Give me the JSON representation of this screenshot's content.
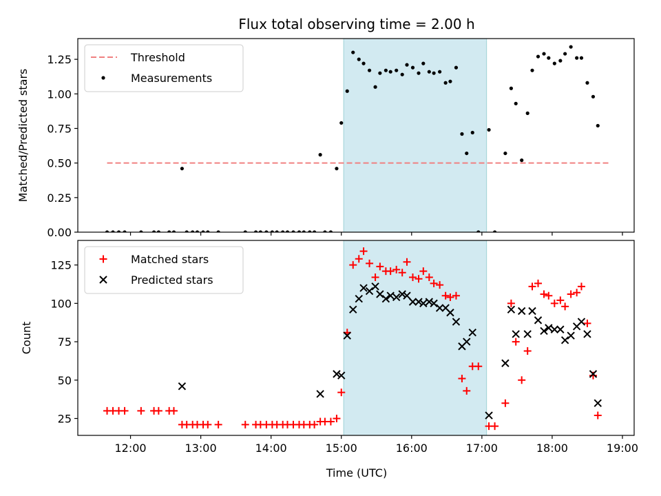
{
  "title": "Flux total observing time = 2.00 h",
  "xlabel": "Time (UTC)",
  "xticks": [
    "12:00",
    "13:00",
    "14:00",
    "15:00",
    "16:00",
    "17:00",
    "18:00",
    "19:00"
  ],
  "colors": {
    "threshold": "#f08080",
    "matched": "#ff0000",
    "predicted": "#000000",
    "measurement": "#000000",
    "shade": "#add8e6"
  },
  "chart_data": [
    {
      "type": "scatter",
      "ylabel": "Matched/Predicted stars",
      "ylim": [
        0,
        1.4
      ],
      "xlim": [
        "11:15",
        "19:10"
      ],
      "yticks": [
        "0.00",
        "0.25",
        "0.50",
        "0.75",
        "1.00",
        "1.25"
      ],
      "legend_position": "top-left",
      "shaded_interval": [
        "15:02",
        "17:04"
      ],
      "threshold": {
        "name": "Threshold",
        "value": 0.5,
        "x_range": [
          "11:40",
          "18:48"
        ]
      },
      "series": [
        {
          "name": "Measurements",
          "points": [
            [
              "11:40",
              0.0
            ],
            [
              "11:45",
              0.0
            ],
            [
              "11:50",
              0.0
            ],
            [
              "11:55",
              0.0
            ],
            [
              "12:09",
              0.0
            ],
            [
              "12:20",
              0.0
            ],
            [
              "12:24",
              0.0
            ],
            [
              "12:33",
              0.0
            ],
            [
              "12:37",
              0.0
            ],
            [
              "12:44",
              0.46
            ],
            [
              "12:48",
              0.0
            ],
            [
              "12:53",
              0.0
            ],
            [
              "12:57",
              0.0
            ],
            [
              "13:02",
              0.0
            ],
            [
              "13:06",
              0.0
            ],
            [
              "13:15",
              0.0
            ],
            [
              "13:38",
              0.0
            ],
            [
              "13:47",
              0.0
            ],
            [
              "13:51",
              0.0
            ],
            [
              "13:56",
              0.0
            ],
            [
              "14:01",
              0.0
            ],
            [
              "14:05",
              0.0
            ],
            [
              "14:10",
              0.0
            ],
            [
              "14:14",
              0.0
            ],
            [
              "14:19",
              0.0
            ],
            [
              "14:24",
              0.0
            ],
            [
              "14:28",
              0.0
            ],
            [
              "14:33",
              0.0
            ],
            [
              "14:37",
              0.0
            ],
            [
              "14:42",
              0.56
            ],
            [
              "14:46",
              0.0
            ],
            [
              "14:51",
              0.0
            ],
            [
              "14:56",
              0.46
            ],
            [
              "15:00",
              0.79
            ],
            [
              "15:05",
              1.02
            ],
            [
              "15:10",
              1.3
            ],
            [
              "15:15",
              1.25
            ],
            [
              "15:19",
              1.22
            ],
            [
              "15:24",
              1.17
            ],
            [
              "15:29",
              1.05
            ],
            [
              "15:33",
              1.15
            ],
            [
              "15:38",
              1.17
            ],
            [
              "15:42",
              1.16
            ],
            [
              "15:47",
              1.17
            ],
            [
              "15:52",
              1.14
            ],
            [
              "15:56",
              1.21
            ],
            [
              "16:01",
              1.19
            ],
            [
              "16:06",
              1.15
            ],
            [
              "16:10",
              1.22
            ],
            [
              "16:15",
              1.16
            ],
            [
              "16:19",
              1.15
            ],
            [
              "16:24",
              1.16
            ],
            [
              "16:29",
              1.08
            ],
            [
              "16:33",
              1.09
            ],
            [
              "16:38",
              1.19
            ],
            [
              "16:43",
              0.71
            ],
            [
              "16:47",
              0.57
            ],
            [
              "16:52",
              0.72
            ],
            [
              "16:57",
              0.0
            ],
            [
              "17:06",
              0.74
            ],
            [
              "17:11",
              0.0
            ],
            [
              "17:20",
              0.57
            ],
            [
              "17:25",
              1.04
            ],
            [
              "17:29",
              0.93
            ],
            [
              "17:34",
              0.52
            ],
            [
              "17:39",
              0.86
            ],
            [
              "17:43",
              1.17
            ],
            [
              "17:48",
              1.27
            ],
            [
              "17:53",
              1.29
            ],
            [
              "17:57",
              1.26
            ],
            [
              "18:02",
              1.22
            ],
            [
              "18:07",
              1.24
            ],
            [
              "18:11",
              1.29
            ],
            [
              "18:16",
              1.34
            ],
            [
              "18:21",
              1.26
            ],
            [
              "18:25",
              1.26
            ],
            [
              "18:30",
              1.08
            ],
            [
              "18:35",
              0.98
            ],
            [
              "18:39",
              0.77
            ]
          ]
        }
      ]
    },
    {
      "type": "scatter",
      "ylabel": "Count",
      "ylim": [
        14,
        141
      ],
      "xlim": [
        "11:15",
        "19:10"
      ],
      "yticks": [
        "25",
        "50",
        "75",
        "100",
        "125"
      ],
      "legend_position": "top-left",
      "shaded_interval": [
        "15:02",
        "17:04"
      ],
      "series": [
        {
          "name": "Matched stars",
          "marker": "plus",
          "points": [
            [
              "11:40",
              30
            ],
            [
              "11:45",
              30
            ],
            [
              "11:50",
              30
            ],
            [
              "11:55",
              30
            ],
            [
              "12:09",
              30
            ],
            [
              "12:20",
              30
            ],
            [
              "12:24",
              30
            ],
            [
              "12:33",
              30
            ],
            [
              "12:37",
              30
            ],
            [
              "12:44",
              21
            ],
            [
              "12:48",
              21
            ],
            [
              "12:53",
              21
            ],
            [
              "12:57",
              21
            ],
            [
              "13:02",
              21
            ],
            [
              "13:06",
              21
            ],
            [
              "13:15",
              21
            ],
            [
              "13:38",
              21
            ],
            [
              "13:47",
              21
            ],
            [
              "13:51",
              21
            ],
            [
              "13:56",
              21
            ],
            [
              "14:01",
              21
            ],
            [
              "14:05",
              21
            ],
            [
              "14:10",
              21
            ],
            [
              "14:14",
              21
            ],
            [
              "14:19",
              21
            ],
            [
              "14:24",
              21
            ],
            [
              "14:28",
              21
            ],
            [
              "14:33",
              21
            ],
            [
              "14:37",
              21
            ],
            [
              "14:42",
              23
            ],
            [
              "14:46",
              23
            ],
            [
              "14:51",
              23
            ],
            [
              "14:56",
              25
            ],
            [
              "15:00",
              42
            ],
            [
              "15:05",
              81
            ],
            [
              "15:10",
              125
            ],
            [
              "15:15",
              129
            ],
            [
              "15:19",
              134
            ],
            [
              "15:24",
              126
            ],
            [
              "15:29",
              117
            ],
            [
              "15:33",
              124
            ],
            [
              "15:38",
              121
            ],
            [
              "15:42",
              121
            ],
            [
              "15:47",
              122
            ],
            [
              "15:52",
              120
            ],
            [
              "15:56",
              127
            ],
            [
              "16:01",
              117
            ],
            [
              "16:06",
              116
            ],
            [
              "16:10",
              121
            ],
            [
              "16:15",
              117
            ],
            [
              "16:19",
              113
            ],
            [
              "16:24",
              112
            ],
            [
              "16:29",
              105
            ],
            [
              "16:33",
              104
            ],
            [
              "16:38",
              105
            ],
            [
              "16:43",
              51
            ],
            [
              "16:47",
              43
            ],
            [
              "16:52",
              59
            ],
            [
              "16:57",
              59
            ],
            [
              "17:06",
              20
            ],
            [
              "17:11",
              20
            ],
            [
              "17:20",
              35
            ],
            [
              "17:25",
              100
            ],
            [
              "17:29",
              75
            ],
            [
              "17:34",
              50
            ],
            [
              "17:39",
              69
            ],
            [
              "17:43",
              111
            ],
            [
              "17:48",
              113
            ],
            [
              "17:53",
              106
            ],
            [
              "17:57",
              105
            ],
            [
              "18:02",
              100
            ],
            [
              "18:07",
              102
            ],
            [
              "18:11",
              98
            ],
            [
              "18:16",
              106
            ],
            [
              "18:21",
              107
            ],
            [
              "18:25",
              111
            ],
            [
              "18:30",
              87
            ],
            [
              "18:35",
              53
            ],
            [
              "18:39",
              27
            ]
          ]
        },
        {
          "name": "Predicted stars",
          "marker": "x",
          "points": [
            [
              "12:44",
              46
            ],
            [
              "14:42",
              41
            ],
            [
              "14:56",
              54
            ],
            [
              "15:00",
              53
            ],
            [
              "15:05",
              79
            ],
            [
              "15:10",
              96
            ],
            [
              "15:15",
              103
            ],
            [
              "15:19",
              110
            ],
            [
              "15:24",
              108
            ],
            [
              "15:29",
              111
            ],
            [
              "15:33",
              106
            ],
            [
              "15:38",
              103
            ],
            [
              "15:42",
              105
            ],
            [
              "15:47",
              104
            ],
            [
              "15:52",
              106
            ],
            [
              "15:56",
              105
            ],
            [
              "16:01",
              101
            ],
            [
              "16:06",
              101
            ],
            [
              "16:10",
              100
            ],
            [
              "16:15",
              101
            ],
            [
              "16:19",
              100
            ],
            [
              "16:24",
              97
            ],
            [
              "16:29",
              97
            ],
            [
              "16:33",
              94
            ],
            [
              "16:38",
              88
            ],
            [
              "16:43",
              72
            ],
            [
              "16:47",
              75
            ],
            [
              "16:52",
              81
            ],
            [
              "17:06",
              27
            ],
            [
              "17:20",
              61
            ],
            [
              "17:25",
              96
            ],
            [
              "17:29",
              80
            ],
            [
              "17:34",
              95
            ],
            [
              "17:39",
              80
            ],
            [
              "17:43",
              95
            ],
            [
              "17:48",
              89
            ],
            [
              "17:53",
              82
            ],
            [
              "17:57",
              84
            ],
            [
              "18:02",
              83
            ],
            [
              "18:07",
              83
            ],
            [
              "18:11",
              76
            ],
            [
              "18:16",
              79
            ],
            [
              "18:21",
              85
            ],
            [
              "18:25",
              88
            ],
            [
              "18:30",
              80
            ],
            [
              "18:35",
              54
            ],
            [
              "18:39",
              35
            ]
          ]
        }
      ]
    }
  ]
}
